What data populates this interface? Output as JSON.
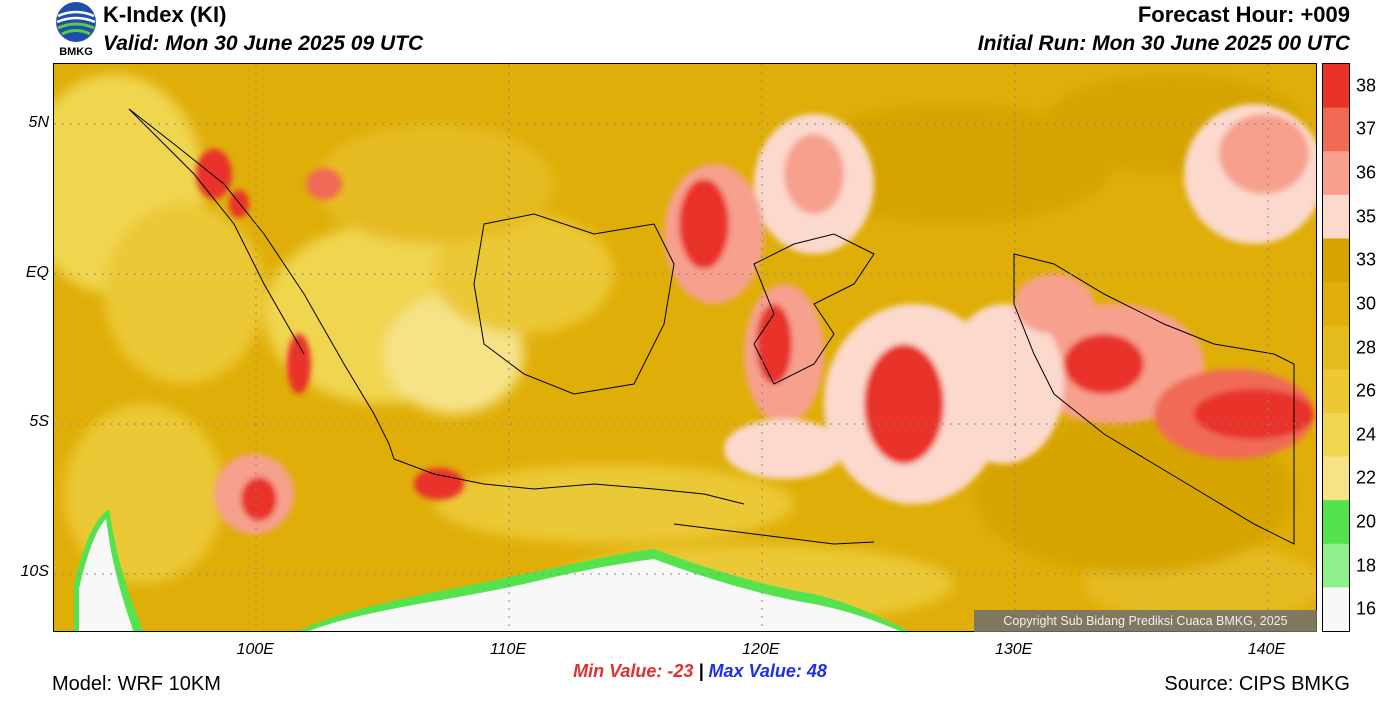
{
  "header": {
    "title": "K-Index (KI)",
    "valid": "Valid: Mon 30 June 2025 09 UTC",
    "forecast_hour": "Forecast Hour: +009",
    "initial_run": "Initial Run: Mon 30 June 2025 00 UTC",
    "logo_text": "BMKG"
  },
  "map": {
    "lat_labels": [
      {
        "text": "5N",
        "lat": 5
      },
      {
        "text": "EQ",
        "lat": 0
      },
      {
        "text": "5S",
        "lat": -5
      },
      {
        "text": "10S",
        "lat": -10
      }
    ],
    "lon_labels": [
      {
        "text": "100E",
        "lon": 100
      },
      {
        "text": "110E",
        "lon": 110
      },
      {
        "text": "120E",
        "lon": 120
      },
      {
        "text": "130E",
        "lon": 130
      },
      {
        "text": "140E",
        "lon": 140
      }
    ],
    "extent": {
      "lon_min": 92,
      "lon_max": 142,
      "lat_min": -12,
      "lat_max": 7
    }
  },
  "colorbar": {
    "labels": [
      "38",
      "37",
      "36",
      "35",
      "33",
      "30",
      "28",
      "26",
      "24",
      "22",
      "20",
      "18",
      "16"
    ],
    "colors": [
      "#e8322a",
      "#f06a55",
      "#f7a08e",
      "#fbd9cc",
      "#d6a400",
      "#dfae08",
      "#e6bb20",
      "#ebc834",
      "#f0d550",
      "#f6e388",
      "#54e34e",
      "#8ef08a",
      "#f8f8f8"
    ]
  },
  "footer": {
    "min_value": "Min Value: -23",
    "separator": "|",
    "max_value": "Max Value:  48",
    "model": "Model: WRF 10KM",
    "source": "Source: CIPS BMKG",
    "copyright": "Copyright Sub Bidang Prediksi Cuaca BMKG, 2025"
  }
}
